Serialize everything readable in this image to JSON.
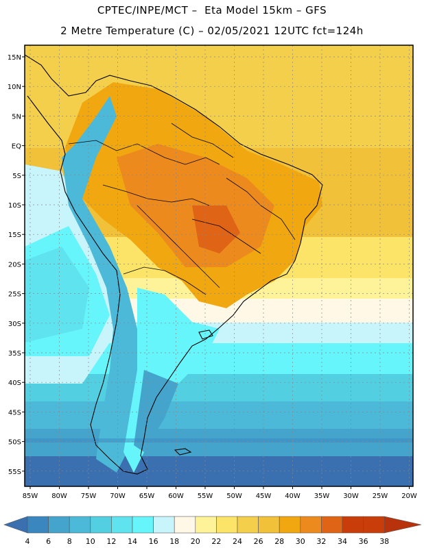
{
  "header": {
    "title_line1": "CPTEC/INPE/MCT –  Eta Model 15km – GFS",
    "title_line2": "2 Metre Temperature (C) – 02/05/2021 12UTC fct=124h"
  },
  "map": {
    "lat_ticks": [
      "15N",
      "10N",
      "5N",
      "EQ",
      "5S",
      "10S",
      "15S",
      "20S",
      "25S",
      "30S",
      "35S",
      "40S",
      "45S",
      "50S",
      "55S"
    ],
    "lon_ticks": [
      "85W",
      "80W",
      "75W",
      "70W",
      "65W",
      "60W",
      "55W",
      "50W",
      "45W",
      "40W",
      "35W",
      "30W",
      "25W",
      "20W"
    ]
  },
  "colorbar": {
    "labels": [
      "4",
      "6",
      "8",
      "10",
      "12",
      "14",
      "16",
      "18",
      "20",
      "22",
      "24",
      "26",
      "28",
      "30",
      "32",
      "34",
      "36",
      "38"
    ],
    "colors": [
      "#3a70b0",
      "#3a87c0",
      "#45a4cc",
      "#4cb9d8",
      "#52cfe0",
      "#5ee3ef",
      "#66f5fa",
      "#c8f4fb",
      "#fff8e6",
      "#fff39a",
      "#fbe468",
      "#f4cf4c",
      "#f1c13a",
      "#f1a810",
      "#ec8a1e",
      "#e06416",
      "#c93d0a",
      "#b8320c"
    ]
  }
}
